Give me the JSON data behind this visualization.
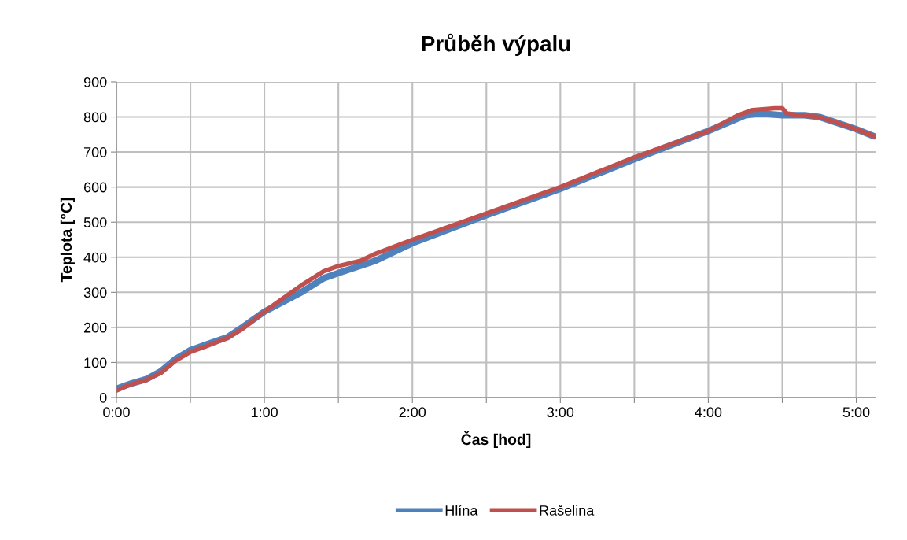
{
  "chart_data": {
    "type": "line",
    "title": "Průběh výpalu",
    "xlabel": "Čas [hod]",
    "ylabel": "Teplota [°C]",
    "xlim": [
      0,
      5.13
    ],
    "xticks": [
      {
        "value": 0,
        "label": "0:00"
      },
      {
        "value": 0.5,
        "label": null
      },
      {
        "value": 1,
        "label": "1:00"
      },
      {
        "value": 1.5,
        "label": null
      },
      {
        "value": 2,
        "label": "2:00"
      },
      {
        "value": 2.5,
        "label": null
      },
      {
        "value": 3,
        "label": "3:00"
      },
      {
        "value": 3.5,
        "label": null
      },
      {
        "value": 4,
        "label": "4:00"
      },
      {
        "value": 4.5,
        "label": null
      },
      {
        "value": 5,
        "label": "5:00"
      }
    ],
    "ylim": [
      0,
      900
    ],
    "yticks": [
      0,
      100,
      200,
      300,
      400,
      500,
      600,
      700,
      800,
      900
    ],
    "grid": true,
    "legend": "bottom",
    "marker": "none",
    "line_style": "solid",
    "series": [
      {
        "name": "Hlína",
        "color": "#4f81bd",
        "x": [
          0,
          0.1,
          0.2,
          0.3,
          0.4,
          0.5,
          0.6,
          0.75,
          0.85,
          1.0,
          1.25,
          1.4,
          1.5,
          1.75,
          2.0,
          2.5,
          3.0,
          3.5,
          4.0,
          4.25,
          4.35,
          4.5,
          4.65,
          4.75,
          5.0,
          5.12
        ],
        "values": [
          25,
          40,
          52,
          75,
          110,
          135,
          150,
          172,
          200,
          245,
          300,
          340,
          355,
          390,
          440,
          520,
          595,
          680,
          760,
          805,
          810,
          805,
          805,
          800,
          765,
          745
        ]
      },
      {
        "name": "Rašelina",
        "color": "#c0504d",
        "x": [
          0,
          0.1,
          0.2,
          0.3,
          0.4,
          0.5,
          0.6,
          0.75,
          0.85,
          1.0,
          1.15,
          1.25,
          1.4,
          1.5,
          1.65,
          1.75,
          2.0,
          2.5,
          3.0,
          3.5,
          4.0,
          4.2,
          4.3,
          4.45,
          4.5,
          4.53,
          4.65,
          4.75,
          5.0,
          5.12
        ],
        "values": [
          20,
          38,
          50,
          70,
          105,
          130,
          145,
          170,
          195,
          245,
          290,
          320,
          360,
          375,
          390,
          410,
          450,
          525,
          600,
          685,
          760,
          805,
          820,
          825,
          825,
          810,
          803,
          800,
          765,
          745
        ]
      }
    ]
  }
}
